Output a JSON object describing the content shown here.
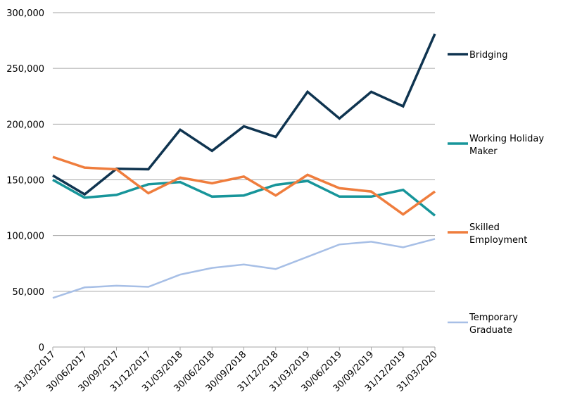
{
  "chart_data": {
    "type": "line",
    "title": "",
    "xlabel": "",
    "ylabel": "",
    "ylim": [
      0,
      300000
    ],
    "yticks": [
      0,
      50000,
      100000,
      150000,
      200000,
      250000,
      300000
    ],
    "ytick_labels": [
      "0",
      "50,000",
      "100,000",
      "150,000",
      "200,000",
      "250,000",
      "300,000"
    ],
    "categories": [
      "31/03/2017",
      "30/06/2017",
      "30/09/2017",
      "31/12/2017",
      "31/03/2018",
      "30/06/2018",
      "30/09/2018",
      "31/12/2018",
      "31/03/2019",
      "30/06/2019",
      "30/09/2019",
      "31/12/2019",
      "31/03/2020"
    ],
    "grid": "horizontal",
    "legend_position": "right",
    "series": [
      {
        "name": "Bridging",
        "legend_lines": [
          "Bridging"
        ],
        "color": "#0f3450",
        "width": 3.5,
        "values": [
          154000,
          137000,
          160000,
          159500,
          195000,
          176000,
          198000,
          188500,
          229000,
          205000,
          229000,
          216000,
          281000
        ]
      },
      {
        "name": "Working Holiday Maker",
        "legend_lines": [
          "Working Holiday",
          "Maker"
        ],
        "color": "#17959a",
        "width": 3.5,
        "values": [
          150000,
          134000,
          136500,
          146000,
          148000,
          135000,
          136000,
          145500,
          149000,
          135000,
          135000,
          141000,
          118000
        ]
      },
      {
        "name": "Skilled Employment",
        "legend_lines": [
          "Skilled",
          "Employment"
        ],
        "color": "#ef7d3d",
        "width": 3.5,
        "values": [
          170500,
          161000,
          159500,
          138000,
          152000,
          147000,
          153000,
          136000,
          154500,
          142500,
          139500,
          119000,
          139500
        ]
      },
      {
        "name": "Temporary Graduate",
        "legend_lines": [
          "Temporary",
          "Graduate"
        ],
        "color": "#a7bfe6",
        "width": 2.5,
        "values": [
          44000,
          53500,
          55000,
          54000,
          65000,
          71000,
          74000,
          70000,
          81000,
          92000,
          94500,
          89500,
          97000
        ]
      }
    ]
  }
}
